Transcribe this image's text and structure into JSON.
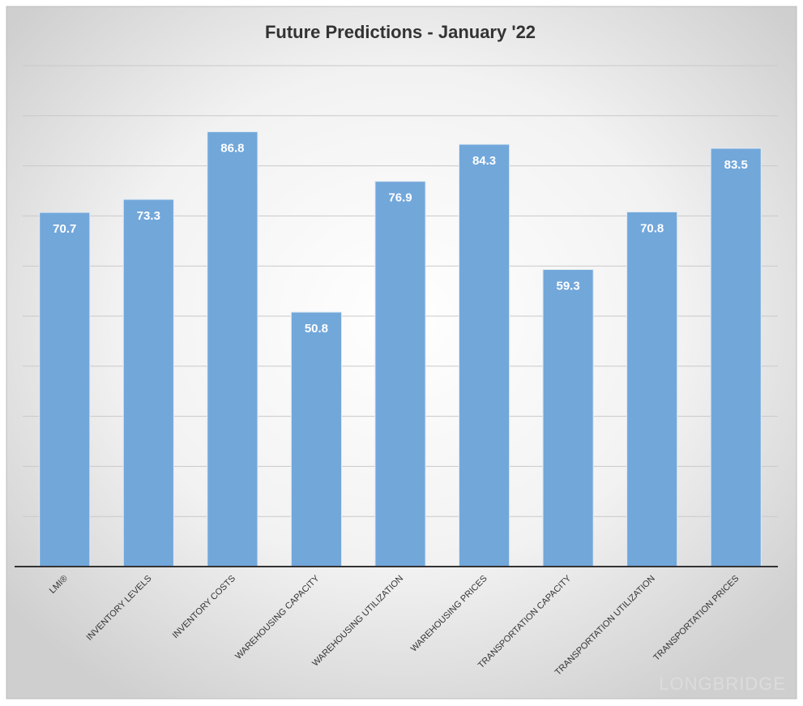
{
  "chart_data": {
    "type": "bar",
    "title": "Future Predictions - January '22",
    "categories": [
      "LMI®",
      "INVENTORY LEVELS",
      "INVENTORY COSTS",
      "WAREHOUSING CAPACITY",
      "WAREHOUSING UTILIZATION",
      "WAREHOUSING PRICES",
      "TRANSPORTATION CAPACITY",
      "TRANSPORTATION UTILIZATION",
      "TRANSPORTATION PRICES"
    ],
    "values": [
      70.7,
      73.3,
      86.8,
      50.8,
      76.9,
      84.3,
      59.3,
      70.8,
      83.5
    ],
    "color": "#72a7da",
    "ylim": [
      0,
      100
    ],
    "yticks": [
      0,
      10,
      20,
      30,
      40,
      50,
      60,
      70,
      80,
      90,
      100
    ],
    "grid": true,
    "watermark": "LONGBRIDGE"
  }
}
